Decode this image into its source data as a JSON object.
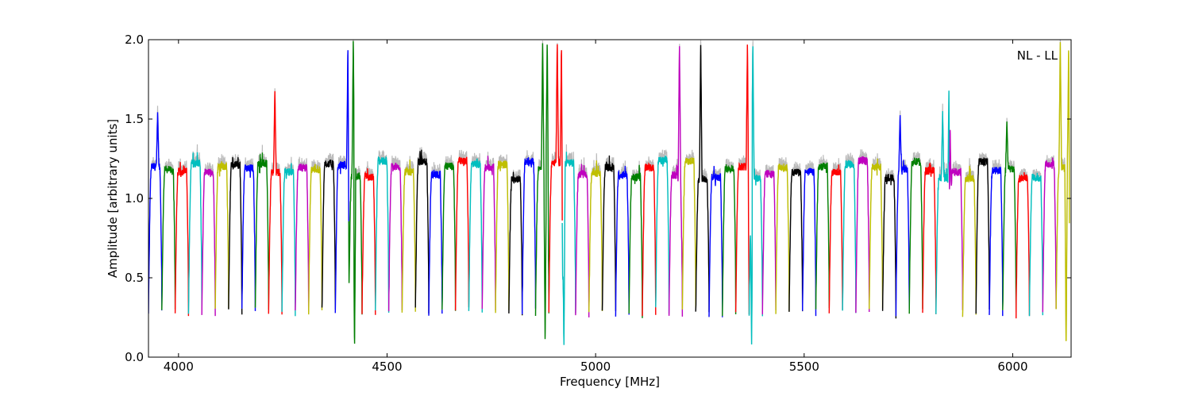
{
  "chart_data": {
    "type": "line",
    "title": "",
    "annotation": "NL - LL",
    "xlabel": "Frequency [MHz]",
    "ylabel": "Amplitude [arbitrary units]",
    "xlim": [
      3928,
      6140
    ],
    "ylim": [
      0.0,
      2.0
    ],
    "x_ticks": [
      4000,
      4500,
      5000,
      5500,
      6000
    ],
    "y_ticks": [
      0.0,
      0.5,
      1.0,
      1.5,
      2.0
    ],
    "x_tick_labels": [
      "4000",
      "4500",
      "5000",
      "5500",
      "6000"
    ],
    "y_tick_labels": [
      "0.0",
      "0.5",
      "1.0",
      "1.5",
      "2.0"
    ],
    "grid": false,
    "legend": "none",
    "series_colors": [
      "#0000ff",
      "#008000",
      "#ff0000",
      "#00bfbf",
      "#bf00bf",
      "#bfbf00",
      "#000000"
    ],
    "background_series_color": "#bbbbbb",
    "subband_width_mhz": 32,
    "first_subband_start_mhz": 3928,
    "subband_count": 69,
    "typical_passband_level": 1.18,
    "typical_edge_level": 0.28,
    "spikes": [
      {
        "x": 3950,
        "y": 1.55
      },
      {
        "x": 4231,
        "y": 1.69
      },
      {
        "x": 4406,
        "y": 2.0
      },
      {
        "x": 4419,
        "y": 2.0
      },
      {
        "x": 4422,
        "y": 0.02
      },
      {
        "x": 4873,
        "y": 2.0
      },
      {
        "x": 4879,
        "y": 0.06
      },
      {
        "x": 4884,
        "y": 2.0
      },
      {
        "x": 4908,
        "y": 2.0
      },
      {
        "x": 4918,
        "y": 2.0
      },
      {
        "x": 4924,
        "y": 0.04
      },
      {
        "x": 5201,
        "y": 2.0
      },
      {
        "x": 5252,
        "y": 2.0
      },
      {
        "x": 5364,
        "y": 2.0
      },
      {
        "x": 5374,
        "y": 0.06
      },
      {
        "x": 5377,
        "y": 2.0
      },
      {
        "x": 5730,
        "y": 1.53
      },
      {
        "x": 5832,
        "y": 1.55
      },
      {
        "x": 5847,
        "y": 1.71
      },
      {
        "x": 5850,
        "y": 1.48
      },
      {
        "x": 5986,
        "y": 1.49
      },
      {
        "x": 6114,
        "y": 2.0
      },
      {
        "x": 6128,
        "y": 0.01
      },
      {
        "x": 6134,
        "y": 2.0
      }
    ]
  }
}
